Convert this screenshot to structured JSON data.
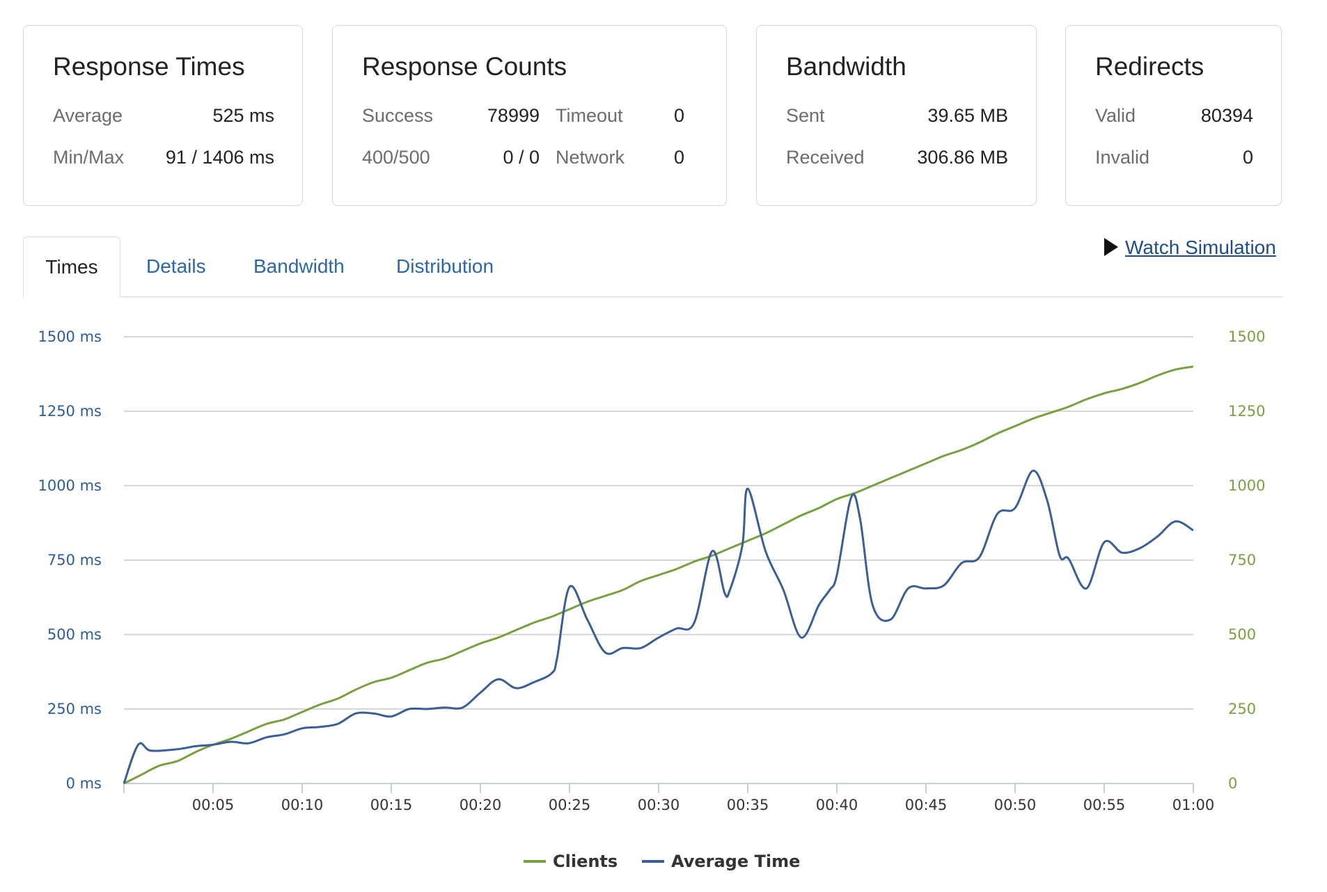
{
  "cards": {
    "response_times": {
      "title": "Response Times",
      "average_label": "Average",
      "average_value": "525 ms",
      "minmax_label": "Min/Max",
      "minmax_value": "91 / 1406 ms"
    },
    "response_counts": {
      "title": "Response Counts",
      "success_label": "Success",
      "success_value": "78999",
      "timeout_label": "Timeout",
      "timeout_value": "0",
      "errors_label": "400/500",
      "errors_value": "0 / 0",
      "network_label": "Network",
      "network_value": "0"
    },
    "bandwidth": {
      "title": "Bandwidth",
      "sent_label": "Sent",
      "sent_value": "39.65 MB",
      "received_label": "Received",
      "received_value": "306.86 MB"
    },
    "redirects": {
      "title": "Redirects",
      "valid_label": "Valid",
      "valid_value": "80394",
      "invalid_label": "Invalid",
      "invalid_value": "0"
    }
  },
  "tabs": [
    {
      "label": "Times",
      "active": true
    },
    {
      "label": "Details",
      "active": false
    },
    {
      "label": "Bandwidth",
      "active": false
    },
    {
      "label": "Distribution",
      "active": false
    }
  ],
  "watch_link": "Watch Simulation",
  "colors": {
    "clients": "#78a040",
    "average_time": "#3a5e96",
    "grid": "#cccccc",
    "axis": "#c0d0e0"
  },
  "chart_data": {
    "type": "line",
    "y_left": {
      "range": [
        0,
        1500
      ],
      "ticks": [
        0,
        250,
        500,
        750,
        1000,
        1250,
        1500
      ],
      "tick_labels": [
        "0 ms",
        "250 ms",
        "500 ms",
        "750 ms",
        "1000 ms",
        "1250 ms",
        "1500 ms"
      ]
    },
    "y_right": {
      "range": [
        0,
        1500
      ],
      "ticks": [
        0,
        250,
        500,
        750,
        1000,
        1250,
        1500
      ],
      "tick_labels": [
        "0",
        "250",
        "500",
        "750",
        "1000",
        "1250",
        "1500"
      ]
    },
    "x": {
      "range": [
        0,
        60
      ],
      "ticks": [
        5,
        10,
        15,
        20,
        25,
        30,
        35,
        40,
        45,
        50,
        55,
        60
      ],
      "tick_labels": [
        "00:05",
        "00:10",
        "00:15",
        "00:20",
        "00:25",
        "00:30",
        "00:35",
        "00:40",
        "00:45",
        "00:50",
        "00:55",
        "01:00"
      ]
    },
    "grid": true,
    "legend_position": "bottom-center",
    "series": [
      {
        "name": "Clients",
        "axis": "right",
        "x": [
          0,
          1,
          2,
          3,
          4,
          5,
          6,
          7,
          8,
          9,
          10,
          11,
          12,
          13,
          14,
          15,
          16,
          17,
          18,
          19,
          20,
          21,
          22,
          23,
          24,
          25,
          26,
          27,
          28,
          29,
          30,
          31,
          32,
          33,
          34,
          35,
          36,
          37,
          38,
          39,
          40,
          41,
          42,
          43,
          44,
          45,
          46,
          47,
          48,
          49,
          50,
          51,
          52,
          53,
          54,
          55,
          56,
          57,
          58,
          59,
          60
        ],
        "values": [
          0,
          30,
          60,
          75,
          105,
          130,
          150,
          175,
          200,
          215,
          240,
          265,
          285,
          315,
          340,
          355,
          380,
          405,
          420,
          445,
          470,
          490,
          515,
          540,
          560,
          585,
          610,
          630,
          650,
          680,
          700,
          720,
          745,
          765,
          790,
          815,
          840,
          870,
          900,
          925,
          955,
          975,
          1000,
          1025,
          1050,
          1075,
          1100,
          1120,
          1145,
          1175,
          1200,
          1225,
          1245,
          1265,
          1290,
          1310,
          1325,
          1345,
          1370,
          1390,
          1400
        ]
      },
      {
        "name": "Average Time",
        "axis": "left",
        "x": [
          0,
          0.8,
          1.5,
          3,
          4,
          5,
          6,
          7,
          8,
          9,
          10,
          11,
          12,
          13,
          14,
          15,
          16,
          17,
          18,
          19,
          20,
          21,
          22,
          23,
          24,
          24.3,
          25,
          26,
          27,
          28,
          29,
          30,
          31,
          32,
          33,
          33.7,
          34,
          34.7,
          35,
          36,
          37,
          38,
          39,
          39.6,
          40,
          40.8,
          41.3,
          42,
          43,
          44,
          45,
          46,
          47,
          48,
          49,
          50,
          51,
          51.8,
          52.5,
          53,
          54,
          55,
          56,
          57,
          58,
          59,
          60
        ],
        "values": [
          0,
          130,
          110,
          115,
          125,
          130,
          140,
          135,
          155,
          165,
          185,
          190,
          200,
          235,
          235,
          225,
          250,
          250,
          255,
          255,
          305,
          350,
          320,
          340,
          370,
          420,
          660,
          550,
          440,
          455,
          455,
          490,
          520,
          540,
          780,
          640,
          650,
          800,
          990,
          780,
          650,
          490,
          600,
          650,
          700,
          960,
          890,
          600,
          550,
          655,
          655,
          665,
          740,
          760,
          905,
          925,
          1050,
          950,
          765,
          755,
          655,
          810,
          775,
          790,
          830,
          880,
          850
        ]
      }
    ]
  }
}
